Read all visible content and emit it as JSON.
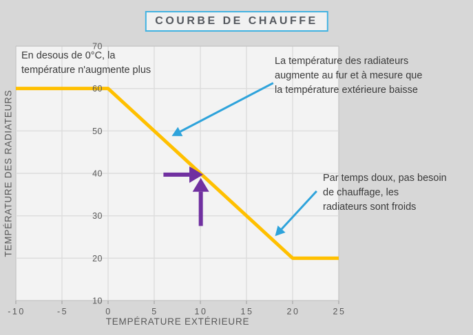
{
  "page": {
    "background": "#D7D7D7",
    "plot_background": "#F3F3F3",
    "gridline_color": "#DCDCDC",
    "plot_edge_color": "#C8C8C8",
    "tick_mark_color": "#ADADAD",
    "axis_text_color": "#595959",
    "annotation_text_color": "#3A3A3A",
    "accent_cyan": "#2EA3DB",
    "accent_purple": "#7030A0",
    "accent_yellow": "#FFC000",
    "title_border_color": "#41B2E1",
    "title_text_color": "#54585E"
  },
  "chart_data": {
    "type": "line",
    "title": "COURBE DE CHAUFFE",
    "xlabel": "TEMPÉRATURE EXTÉRIEURE",
    "ylabel": "TEMPÉRATURE DES RADIATEURS",
    "xlim": [
      -10,
      25
    ],
    "ylim": [
      10,
      70
    ],
    "x_ticks": [
      -10,
      -5,
      0,
      5,
      10,
      15,
      20,
      25
    ],
    "y_ticks": [
      70,
      60,
      50,
      40,
      30,
      20,
      10
    ],
    "grid": true,
    "legend_position": "none",
    "series": [
      {
        "name": "temperature-des-radiateurs",
        "color": "#FFC000",
        "stroke_width": 5,
        "points": [
          [
            -10,
            60
          ],
          [
            0,
            60
          ],
          [
            20,
            20
          ],
          [
            25,
            20
          ]
        ]
      }
    ],
    "marked_point": {
      "x": 10,
      "y": 40
    },
    "arrows": [
      {
        "name": "callout-arrow-slope",
        "color": "#2EA3DB",
        "width": 3,
        "head_len": 14,
        "head_halfwidth": 7.5,
        "from": [
          17.9,
          61.3
        ],
        "to": [
          6.9,
          48.8
        ]
      },
      {
        "name": "callout-arrow-mild",
        "color": "#2EA3DB",
        "width": 3,
        "head_len": 14,
        "head_halfwidth": 7.5,
        "from": [
          22.6,
          35.8
        ],
        "to": [
          18.1,
          25.2
        ]
      },
      {
        "name": "marker-arrow-horizontal",
        "color": "#7030A0",
        "width": 6,
        "head_len": 20,
        "head_halfwidth": 12,
        "from": [
          6.0,
          39.7
        ],
        "to": [
          10.3,
          39.7
        ]
      },
      {
        "name": "marker-arrow-vertical",
        "color": "#7030A0",
        "width": 6,
        "head_len": 20,
        "head_halfwidth": 12,
        "from": [
          10.05,
          27.6
        ],
        "to": [
          10.05,
          38.9
        ]
      }
    ]
  },
  "annotations": {
    "below_zero": "En desous de 0°C, la\ntempérature n'augmente plus",
    "radiators_increase": "La température des radiateurs\naugmente au fur et à mesure que\nla température extérieure baisse",
    "mild_weather": "Par temps doux, pas besoin\nde chauffage, les\nradiateurs sont froids"
  }
}
